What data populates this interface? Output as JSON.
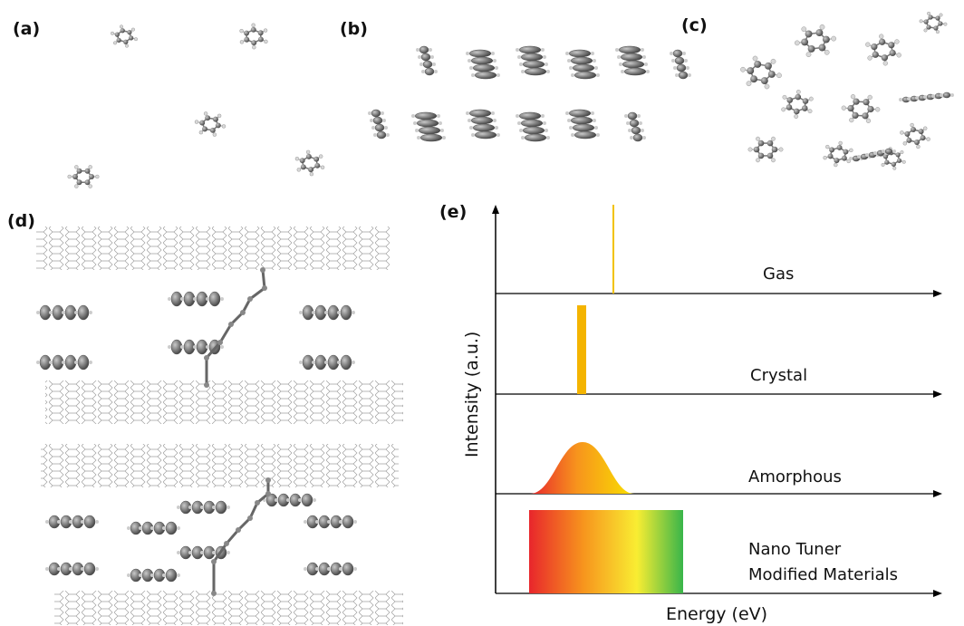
{
  "panels": {
    "a": {
      "label": "(a)"
    },
    "b": {
      "label": "(b)"
    },
    "c": {
      "label": "(c)"
    },
    "d": {
      "label": "(d)"
    },
    "e": {
      "label": "(e)"
    }
  },
  "panel_e": {
    "ylabel": "Intensity (a.u.)",
    "xlabel": "Energy (eV)",
    "states": [
      {
        "label": "Gas",
        "shape": "line"
      },
      {
        "label": "Crystal",
        "shape": "narrow-bar"
      },
      {
        "label": "Amorphous",
        "shape": "gaussian"
      },
      {
        "label": "Nano Tuner",
        "label_line2": "Modified Materials",
        "shape": "broad-band"
      }
    ],
    "colors": {
      "gas_line": "#f2c200",
      "crystal_bar": "#f4b400",
      "spectrum": [
        "#e8262c",
        "#f7941d",
        "#f9ed32",
        "#39b54a"
      ]
    }
  }
}
